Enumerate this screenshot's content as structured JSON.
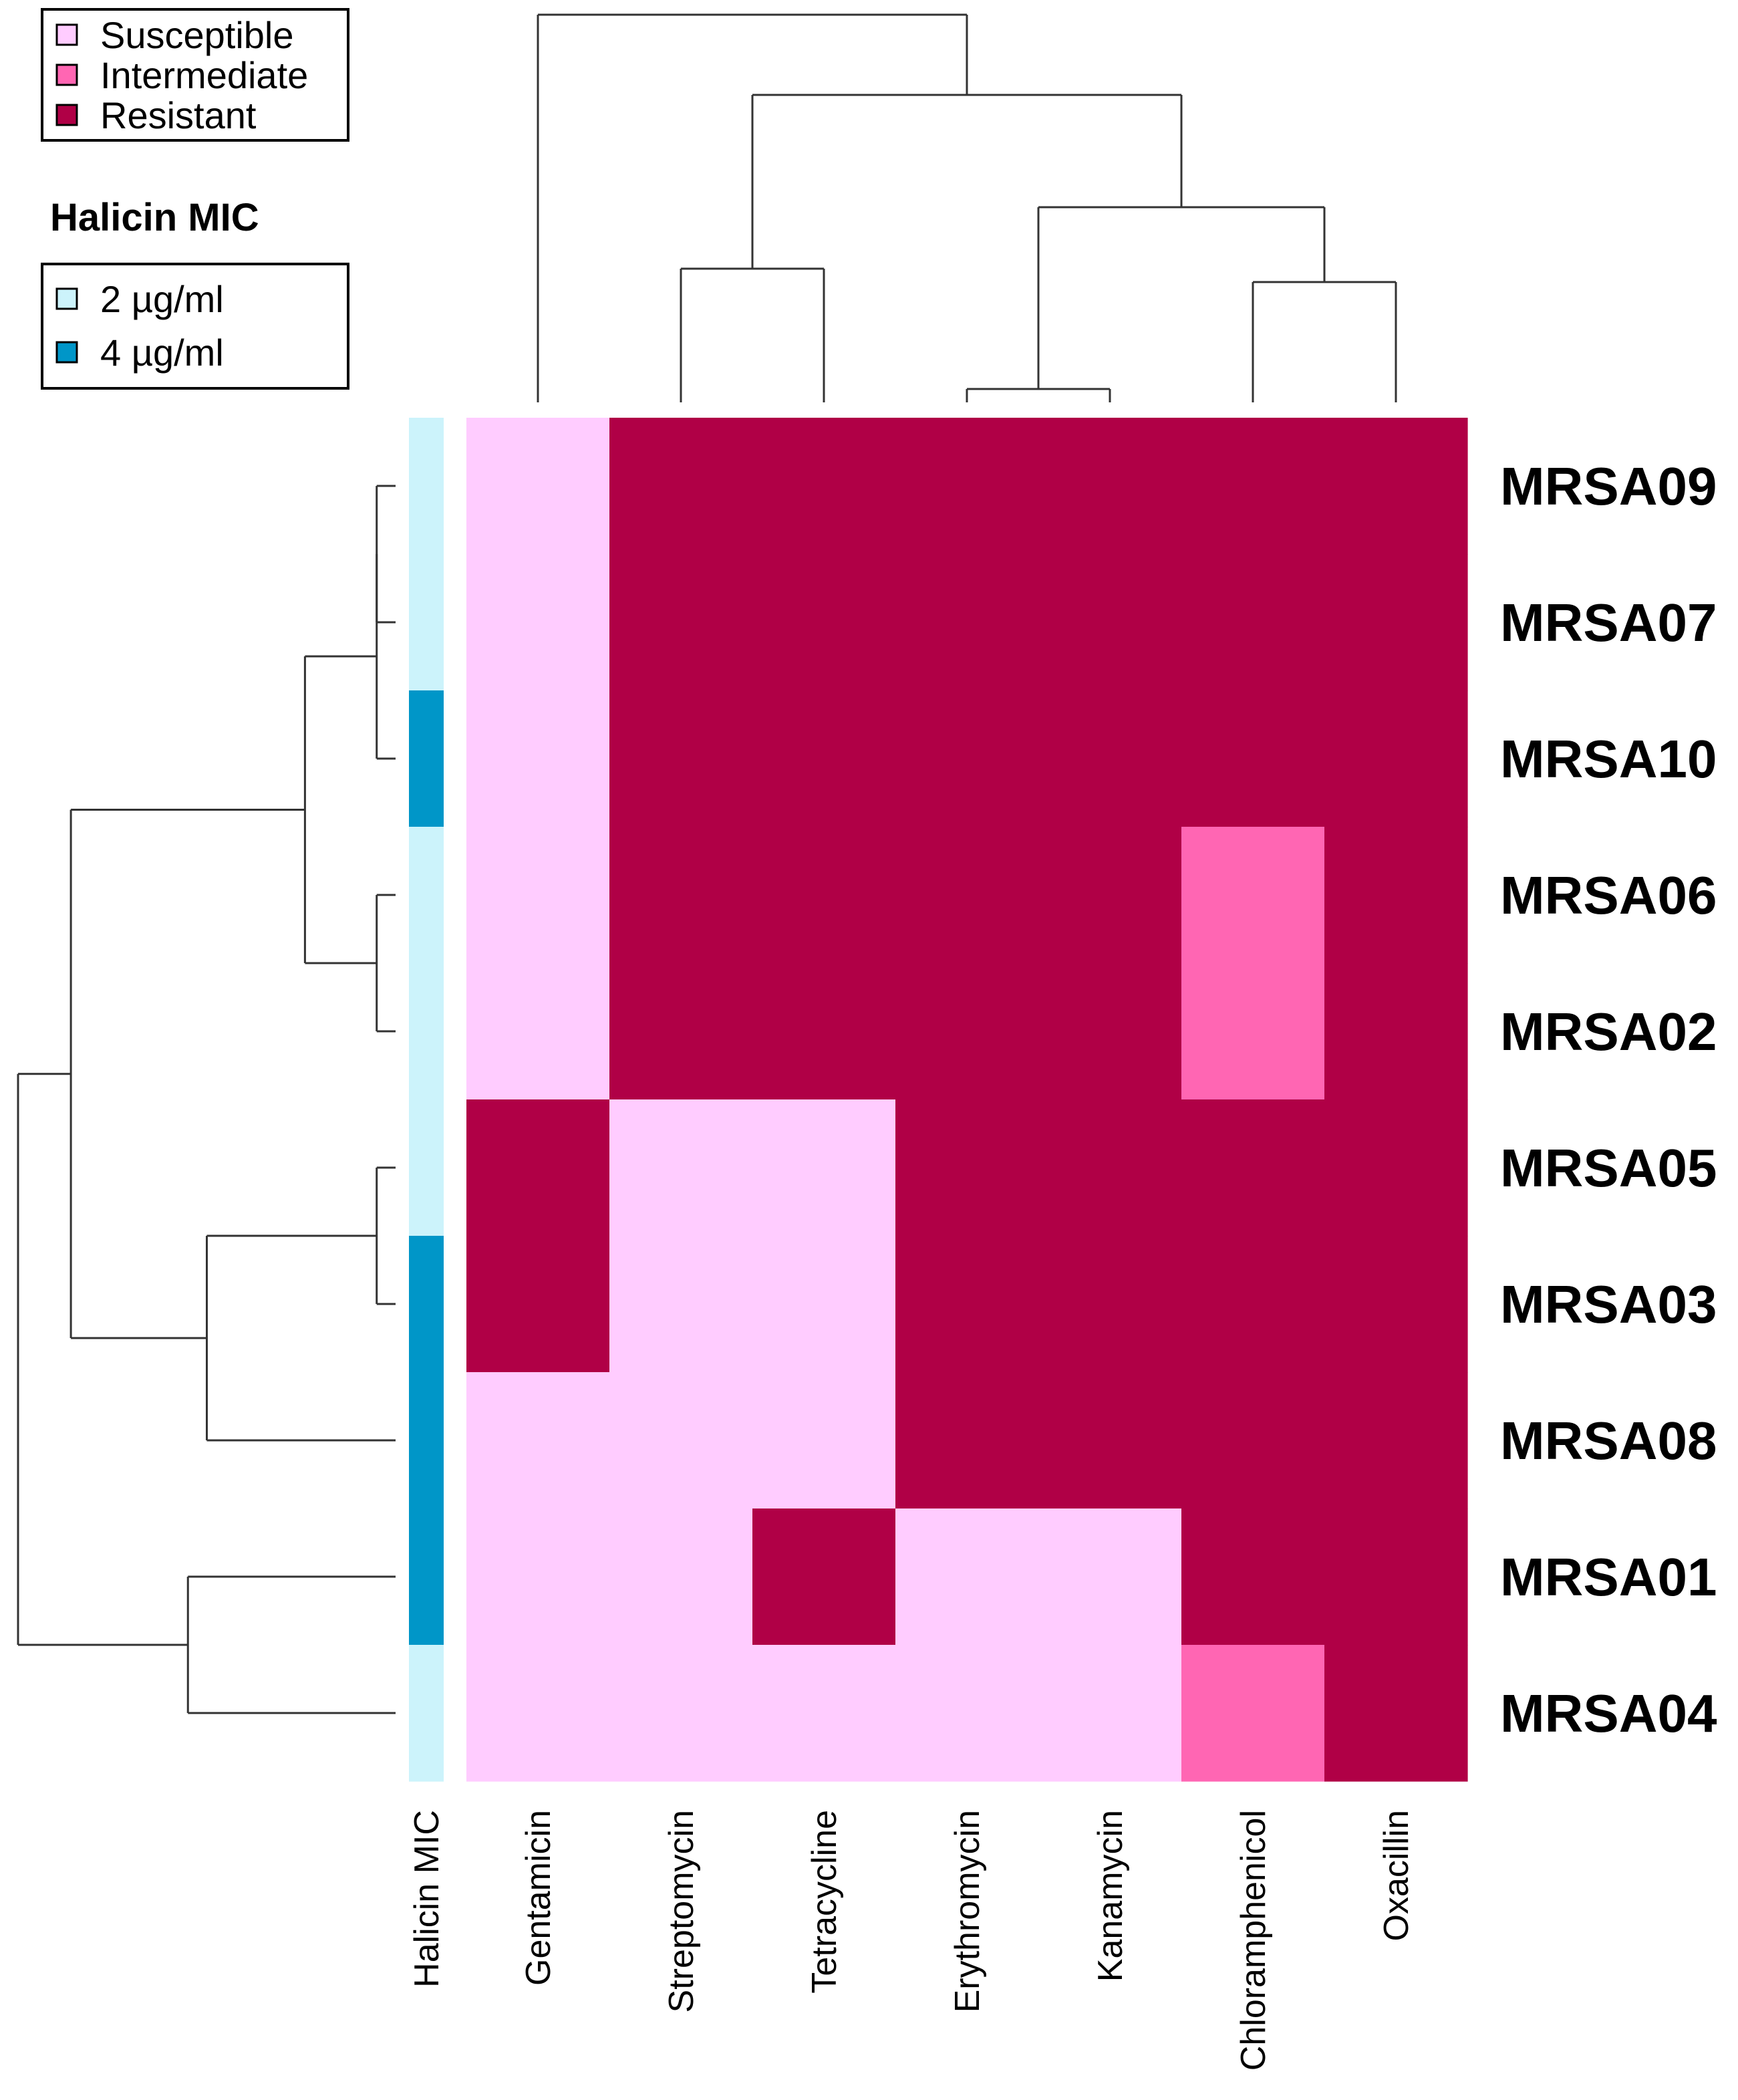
{
  "chart_data": {
    "type": "heatmap",
    "title": "",
    "rows": [
      "MRSA09",
      "MRSA07",
      "MRSA10",
      "MRSA06",
      "MRSA02",
      "MRSA05",
      "MRSA03",
      "MRSA08",
      "MRSA01",
      "MRSA04"
    ],
    "columns": [
      "Gentamicin",
      "Streptomycin",
      "Tetracycline",
      "Erythromycin",
      "Kanamycin",
      "Chloramphenicol",
      "Oxacillin"
    ],
    "values": [
      [
        "S",
        "R",
        "R",
        "R",
        "R",
        "R",
        "R"
      ],
      [
        "S",
        "R",
        "R",
        "R",
        "R",
        "R",
        "R"
      ],
      [
        "S",
        "R",
        "R",
        "R",
        "R",
        "R",
        "R"
      ],
      [
        "S",
        "R",
        "R",
        "R",
        "R",
        "I",
        "R"
      ],
      [
        "S",
        "R",
        "R",
        "R",
        "R",
        "I",
        "R"
      ],
      [
        "R",
        "S",
        "S",
        "R",
        "R",
        "R",
        "R"
      ],
      [
        "R",
        "S",
        "S",
        "R",
        "R",
        "R",
        "R"
      ],
      [
        "S",
        "S",
        "S",
        "R",
        "R",
        "R",
        "R"
      ],
      [
        "S",
        "S",
        "R",
        "S",
        "S",
        "R",
        "R"
      ],
      [
        "S",
        "S",
        "S",
        "S",
        "S",
        "I",
        "R"
      ]
    ],
    "annotation": {
      "label": "Halicin MIC",
      "values": [
        "2 µg/ml",
        "2 µg/ml",
        "4 µg/ml",
        "2 µg/ml",
        "2 µg/ml",
        "2 µg/ml",
        "4 µg/ml",
        "4 µg/ml",
        "4 µg/ml",
        "2 µg/ml"
      ]
    },
    "legend_susceptibility": {
      "entries": [
        {
          "key": "S",
          "label": "Susceptible",
          "color": "#ffccff"
        },
        {
          "key": "I",
          "label": "Intermediate",
          "color": "#ff66b3"
        },
        {
          "key": "R",
          "label": "Resistant",
          "color": "#b00046"
        }
      ]
    },
    "legend_mic": {
      "title": "Halicin MIC",
      "entries": [
        {
          "label": "2 µg/ml",
          "color": "#ccf3fb"
        },
        {
          "label": "4 µg/ml",
          "color": "#0096c8"
        }
      ]
    },
    "column_dendrogram": [
      [
        3,
        4,
        0.05
      ],
      [
        5,
        6,
        0.45
      ],
      [
        1,
        2,
        0.5
      ],
      [
        7,
        8,
        0.73
      ],
      [
        9,
        10,
        1.15
      ],
      [
        0,
        11,
        1.45
      ]
    ],
    "row_dendrogram": [
      [
        0,
        1,
        0.05
      ],
      [
        3,
        4,
        0.05
      ],
      [
        5,
        6,
        0.05
      ],
      [
        10,
        2,
        0.05
      ],
      [
        12,
        7,
        0.5
      ],
      [
        11,
        13,
        0.24
      ],
      [
        8,
        9,
        0.55
      ],
      [
        15,
        14,
        0.86
      ],
      [
        17,
        16,
        1.0
      ]
    ]
  }
}
